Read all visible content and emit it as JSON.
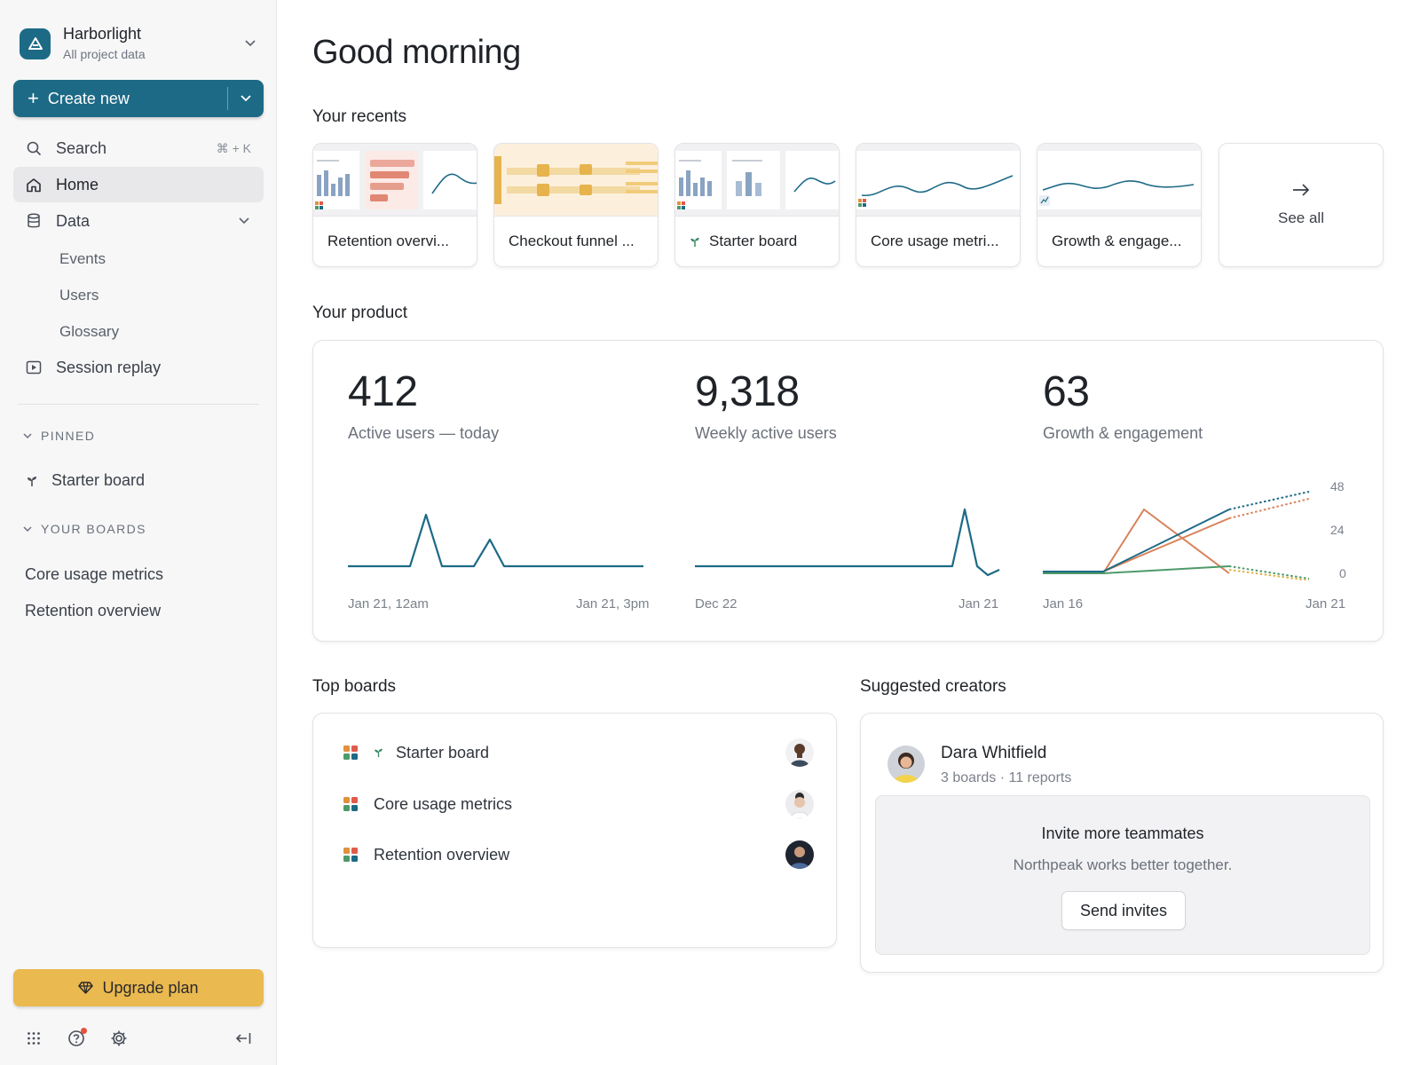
{
  "workspace": {
    "name": "Harborlight",
    "subtitle": "All project data"
  },
  "create": {
    "label": "Create new"
  },
  "nav": {
    "search": {
      "label": "Search",
      "shortcut": "⌘ + K"
    },
    "home": {
      "label": "Home"
    },
    "data": {
      "label": "Data",
      "children": [
        "Events",
        "Users",
        "Glossary"
      ]
    },
    "session_replay": {
      "label": "Session replay"
    }
  },
  "pinned": {
    "header": "PINNED",
    "items": [
      "Starter board"
    ]
  },
  "your_boards": {
    "header": "YOUR BOARDS",
    "items": [
      "Core usage metrics",
      "Retention overview"
    ]
  },
  "upgrade": {
    "label": "Upgrade plan"
  },
  "greeting": "Good morning",
  "recents": {
    "title": "Your recents",
    "items": [
      "Retention overvi...",
      "Checkout funnel ...",
      "Starter board",
      "Core usage metri...",
      "Growth & engage..."
    ],
    "see_all": "See all"
  },
  "product": {
    "title": "Your product",
    "metrics": [
      {
        "value": "412",
        "label": "Active users — today",
        "x_start": "Jan 21, 12am",
        "x_end": "Jan 21, 3pm"
      },
      {
        "value": "9,318",
        "label": "Weekly active users",
        "x_start": "Dec 22",
        "x_end": "Jan 21"
      },
      {
        "value": "63",
        "label": "Growth & engagement",
        "x_start": "Jan 16",
        "x_end": "Jan 21",
        "y_ticks": [
          "48",
          "24",
          "0"
        ]
      }
    ]
  },
  "top_boards": {
    "title": "Top boards",
    "items": [
      "Starter board",
      "Core usage metrics",
      "Retention overview"
    ]
  },
  "suggested_creators": {
    "title": "Suggested creators",
    "creator": {
      "name": "Dara Whitfield",
      "meta": "3 boards · 11 reports"
    },
    "invite": {
      "title": "Invite more teammates",
      "subtitle": "Northpeak works better together.",
      "button": "Send invites"
    }
  },
  "colors": {
    "brand": "#1d6a86",
    "upgrade": "#eab94f",
    "series_teal": "#1d6a86",
    "series_orange": "#d9825a",
    "series_green": "#4e9a6a"
  }
}
